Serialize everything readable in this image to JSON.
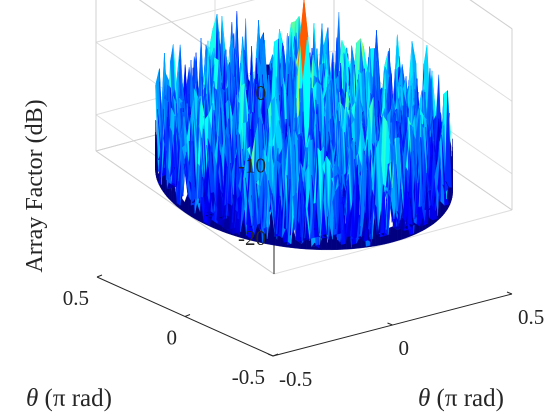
{
  "chart_data": {
    "type": "surface3d",
    "zlabel": "Array Factor (dB)",
    "xlabel_symbol": "θ",
    "xlabel_unit": " (π rad)",
    "ylabel_symbol": "θ",
    "ylabel_unit": " (π rad)",
    "zlim": [
      -25,
      0
    ],
    "xlim": [
      -0.5,
      0.5
    ],
    "ylim": [
      -0.5,
      0.5
    ],
    "z_ticks": [
      "0",
      "-10",
      "-20"
    ],
    "z_tick_values": [
      0,
      -10,
      -20
    ],
    "left_ticks": [
      "0.5",
      "0",
      "-0.5"
    ],
    "left_tick_values": [
      0.5,
      0,
      -0.5
    ],
    "right_ticks": [
      "-0.5",
      "0",
      "0.5"
    ],
    "right_tick_values": [
      -0.5,
      0,
      0.5
    ],
    "grid": true,
    "colormap": "jet",
    "main_lobe": {
      "x": 0,
      "y": 0,
      "peak_db": 0
    },
    "sidelobe_level_db": [
      -24,
      -9
    ],
    "floor_db": -25,
    "support_radius": 0.5
  }
}
